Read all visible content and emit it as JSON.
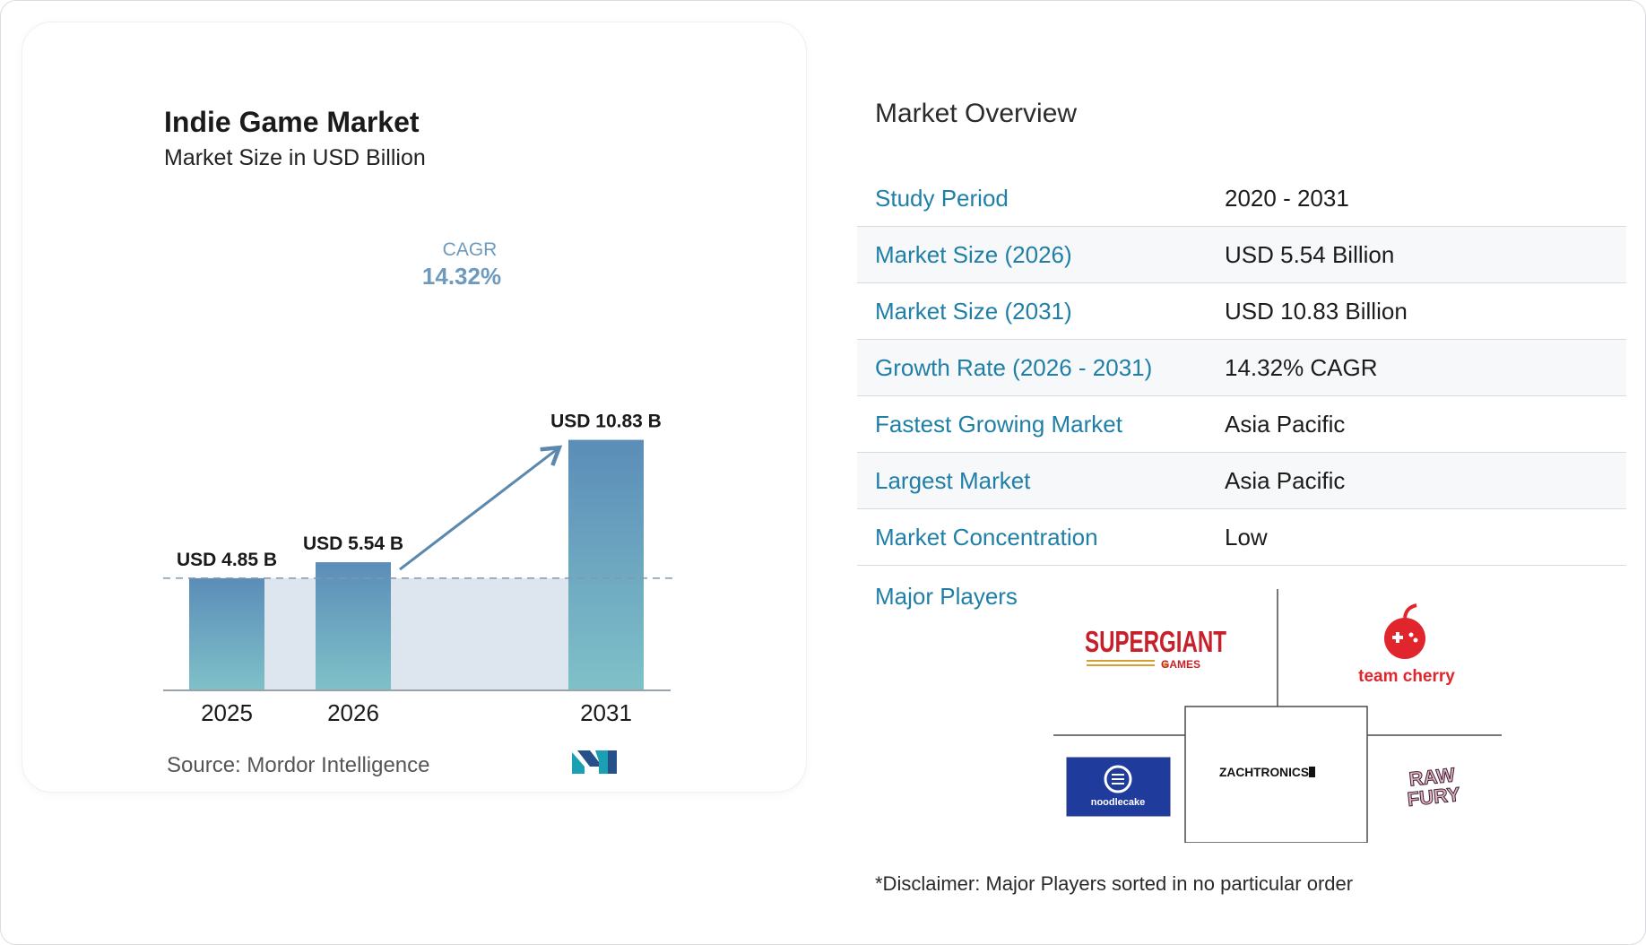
{
  "chart_data": {
    "type": "bar",
    "title": "Indie Game Market",
    "subtitle": "Market Size in USD Billion",
    "categories": [
      "2025",
      "2026",
      "2031"
    ],
    "values": [
      4.85,
      5.54,
      10.83
    ],
    "data_labels": [
      "USD 4.85 B",
      "USD 5.54 B",
      "USD 10.83 B"
    ],
    "cagr_label": "CAGR",
    "cagr_value": "14.32%",
    "baseline_value": 4.85,
    "grid": false,
    "colors": {
      "bar_top": "#5b8db8",
      "bar_bottom": "#7fc1c8",
      "band": "#dde6ef",
      "arrow": "#5b88ad",
      "cagr": "#6e9bbd"
    }
  },
  "source": {
    "label": "Source:",
    "name": "Mordor Intelligence"
  },
  "overview": {
    "title": "Market Overview",
    "rows": [
      {
        "label": "Study Period",
        "value": "2020 - 2031"
      },
      {
        "label": "Market Size (2026)",
        "value": "USD 5.54 Billion"
      },
      {
        "label": "Market Size (2031)",
        "value": "USD 10.83 Billion"
      },
      {
        "label": "Growth Rate (2026 - 2031)",
        "value": "14.32% CAGR"
      },
      {
        "label": "Fastest Growing Market",
        "value": "Asia Pacific"
      },
      {
        "label": "Largest Market",
        "value": "Asia Pacific"
      },
      {
        "label": "Market Concentration",
        "value": "Low"
      }
    ]
  },
  "players": {
    "label": "Major Players",
    "logos": {
      "supergiant": {
        "text": "SUPERGIANT",
        "sub": "GAMES"
      },
      "teamcherry": {
        "text": "team cherry"
      },
      "noodlecake": {
        "text": "noodlecake"
      },
      "zachtronics": {
        "text": "ZACHTRONICS"
      },
      "rawfury": {
        "line1": "RAW",
        "line2": "FURY"
      }
    }
  },
  "disclaimer": "*Disclaimer: Major Players sorted in no particular order",
  "accent_color": "#1f7fa7"
}
